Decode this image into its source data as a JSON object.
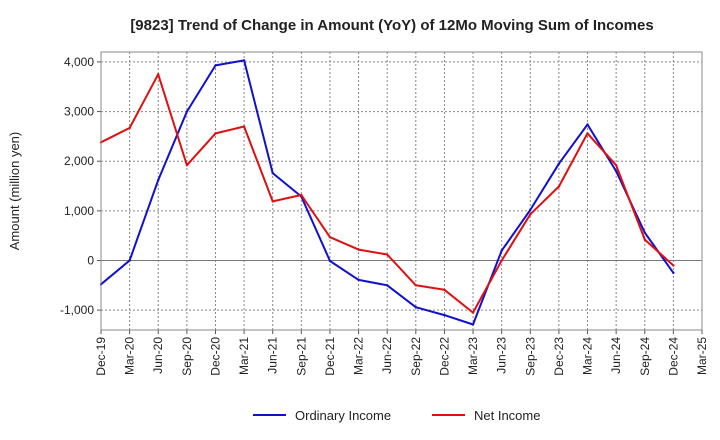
{
  "chart_data": {
    "type": "line",
    "title": "[9823]  Trend of Change in Amount (YoY) of 12Mo Moving Sum of Incomes",
    "xlabel": "",
    "ylabel": "Amount (million yen)",
    "ylim": [
      -1400,
      4200
    ],
    "yticks": [
      -1000,
      0,
      1000,
      2000,
      3000,
      4000
    ],
    "ytick_labels": [
      "-1,000",
      "0",
      "1,000",
      "2,000",
      "3,000",
      "4,000"
    ],
    "categories": [
      "Dec-19",
      "Mar-20",
      "Jun-20",
      "Sep-20",
      "Dec-20",
      "Mar-21",
      "Jun-21",
      "Sep-21",
      "Dec-21",
      "Mar-22",
      "Jun-22",
      "Sep-22",
      "Dec-22",
      "Mar-23",
      "Jun-23",
      "Sep-23",
      "Dec-23",
      "Mar-24",
      "Jun-24",
      "Sep-24",
      "Dec-24",
      "Mar-25"
    ],
    "grid": true,
    "legend_position": "bottom-center",
    "series": [
      {
        "name": "Ordinary Income",
        "color": "#1010d0",
        "values": [
          -480,
          0,
          1620,
          3000,
          3930,
          4030,
          1760,
          1290,
          -10,
          -390,
          -500,
          -940,
          -1100,
          -1290,
          200,
          1020,
          1950,
          2740,
          1800,
          560,
          -250,
          null
        ]
      },
      {
        "name": "Net Income",
        "color": "#e01010",
        "values": [
          2380,
          2670,
          3750,
          1920,
          2560,
          2700,
          1190,
          1320,
          470,
          220,
          120,
          -500,
          -590,
          -1050,
          0,
          930,
          1490,
          2560,
          1920,
          420,
          -100,
          null
        ]
      }
    ]
  }
}
